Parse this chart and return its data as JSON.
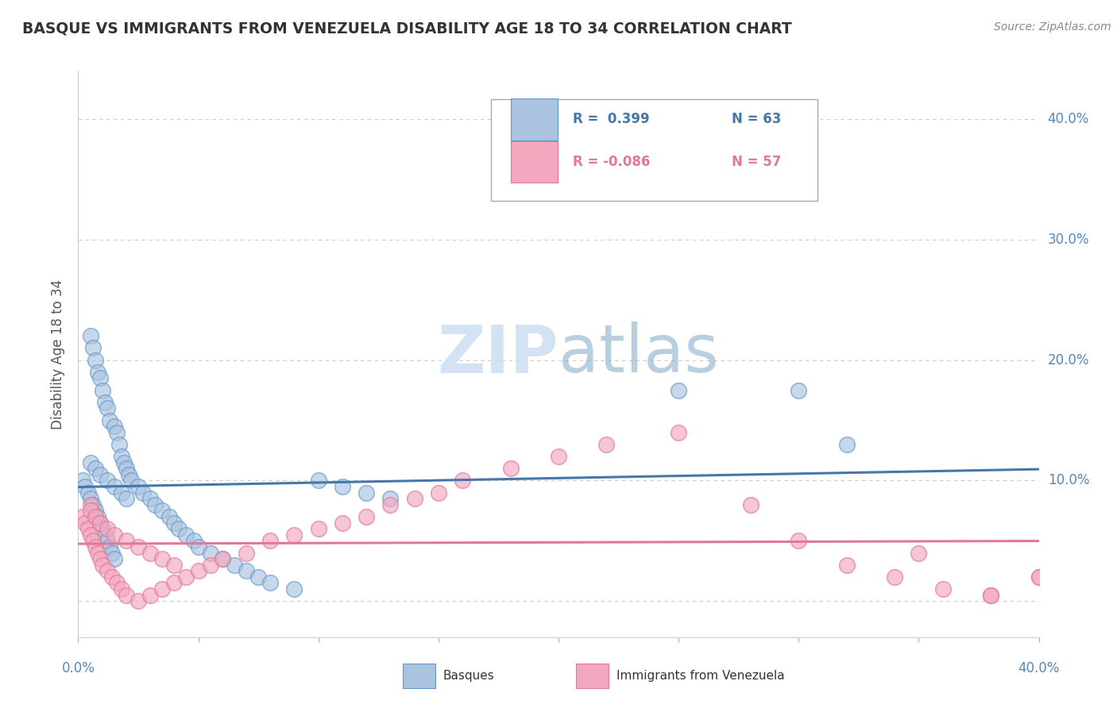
{
  "title": "BASQUE VS IMMIGRANTS FROM VENEZUELA DISABILITY AGE 18 TO 34 CORRELATION CHART",
  "source": "Source: ZipAtlas.com",
  "ylabel": "Disability Age 18 to 34",
  "ytick_labels": [
    "",
    "10.0%",
    "20.0%",
    "30.0%",
    "40.0%"
  ],
  "ytick_values": [
    0.0,
    0.1,
    0.2,
    0.3,
    0.4
  ],
  "xlim": [
    0.0,
    0.4
  ],
  "ylim": [
    -0.03,
    0.44
  ],
  "basque_color": "#aac4e0",
  "basque_edge": "#6699cc",
  "venezuela_color": "#f4a8c0",
  "venezuela_edge": "#e07898",
  "blue_line_color": "#4477aa",
  "pink_line_color": "#e07898",
  "grid_color": "#cccccc",
  "watermark_main": "#c8ddf0",
  "watermark_accent": "#8ab0cc",
  "title_color": "#333333",
  "axis_label_color": "#5588bb",
  "legend_blue_r": "R =  0.399",
  "legend_blue_n": "N = 63",
  "legend_pink_r": "R = -0.086",
  "legend_pink_n": "N = 57",
  "basque_x": [
    0.002,
    0.003,
    0.004,
    0.005,
    0.005,
    0.006,
    0.006,
    0.007,
    0.007,
    0.008,
    0.008,
    0.009,
    0.009,
    0.01,
    0.01,
    0.011,
    0.011,
    0.012,
    0.012,
    0.013,
    0.013,
    0.014,
    0.015,
    0.015,
    0.016,
    0.017,
    0.018,
    0.019,
    0.02,
    0.021,
    0.022,
    0.025,
    0.027,
    0.03,
    0.032,
    0.035,
    0.038,
    0.04,
    0.042,
    0.045,
    0.048,
    0.05,
    0.055,
    0.06,
    0.065,
    0.07,
    0.075,
    0.08,
    0.09,
    0.1,
    0.11,
    0.12,
    0.13,
    0.25,
    0.3,
    0.32,
    0.005,
    0.007,
    0.009,
    0.012,
    0.015,
    0.018,
    0.02
  ],
  "basque_y": [
    0.1,
    0.095,
    0.09,
    0.085,
    0.22,
    0.08,
    0.21,
    0.075,
    0.2,
    0.07,
    0.19,
    0.065,
    0.185,
    0.06,
    0.175,
    0.055,
    0.165,
    0.05,
    0.16,
    0.045,
    0.15,
    0.04,
    0.145,
    0.035,
    0.14,
    0.13,
    0.12,
    0.115,
    0.11,
    0.105,
    0.1,
    0.095,
    0.09,
    0.085,
    0.08,
    0.075,
    0.07,
    0.065,
    0.06,
    0.055,
    0.05,
    0.045,
    0.04,
    0.035,
    0.03,
    0.025,
    0.02,
    0.015,
    0.01,
    0.1,
    0.095,
    0.09,
    0.085,
    0.175,
    0.175,
    0.13,
    0.115,
    0.11,
    0.105,
    0.1,
    0.095,
    0.09,
    0.085
  ],
  "venezuela_x": [
    0.002,
    0.003,
    0.004,
    0.005,
    0.005,
    0.006,
    0.007,
    0.008,
    0.009,
    0.01,
    0.012,
    0.014,
    0.016,
    0.018,
    0.02,
    0.025,
    0.03,
    0.035,
    0.04,
    0.045,
    0.05,
    0.055,
    0.06,
    0.07,
    0.08,
    0.09,
    0.1,
    0.11,
    0.12,
    0.13,
    0.14,
    0.15,
    0.16,
    0.18,
    0.2,
    0.22,
    0.25,
    0.28,
    0.3,
    0.32,
    0.34,
    0.36,
    0.38,
    0.4,
    0.005,
    0.007,
    0.009,
    0.012,
    0.015,
    0.02,
    0.025,
    0.03,
    0.035,
    0.04,
    0.35,
    0.38,
    0.4
  ],
  "venezuela_y": [
    0.07,
    0.065,
    0.06,
    0.055,
    0.08,
    0.05,
    0.045,
    0.04,
    0.035,
    0.03,
    0.025,
    0.02,
    0.015,
    0.01,
    0.005,
    0.0,
    0.005,
    0.01,
    0.015,
    0.02,
    0.025,
    0.03,
    0.035,
    0.04,
    0.05,
    0.055,
    0.06,
    0.065,
    0.07,
    0.08,
    0.085,
    0.09,
    0.1,
    0.11,
    0.12,
    0.13,
    0.14,
    0.08,
    0.05,
    0.03,
    0.02,
    0.01,
    0.005,
    0.02,
    0.075,
    0.07,
    0.065,
    0.06,
    0.055,
    0.05,
    0.045,
    0.04,
    0.035,
    0.03,
    0.04,
    0.005,
    0.02
  ]
}
